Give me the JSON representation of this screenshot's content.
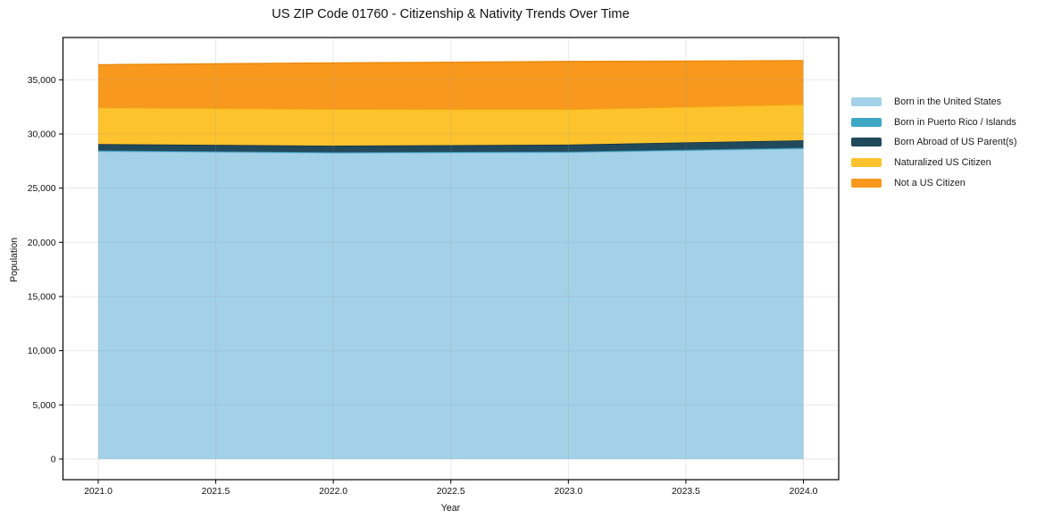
{
  "chart_data": {
    "type": "area",
    "stacked": true,
    "title": "US ZIP Code 01760 - Citizenship & Nativity Trends Over Time",
    "xlabel": "Year",
    "ylabel": "Population",
    "x": [
      2021,
      2022,
      2023,
      2024
    ],
    "series": [
      {
        "name": "Born in the United States",
        "color": "#a3d1e8",
        "edge": "#82bcdb",
        "values": [
          28400,
          28250,
          28300,
          28650
        ]
      },
      {
        "name": "Born in Puerto Rico / Islands",
        "color": "#3fa7c6",
        "edge": "#2f8fae",
        "values": [
          70,
          70,
          70,
          70
        ]
      },
      {
        "name": "Born Abroad of US Parent(s)",
        "color": "#21495c",
        "edge": "#16323f",
        "values": [
          600,
          600,
          650,
          700
        ]
      },
      {
        "name": "Naturalized US Citizen",
        "color": "#fdc32d",
        "edge": "#f0b014",
        "values": [
          3360,
          3370,
          3250,
          3290
        ]
      },
      {
        "name": "Not a US Citizen",
        "color": "#f8991d",
        "edge": "#ee8a0e",
        "values": [
          3960,
          4260,
          4410,
          4050
        ]
      }
    ],
    "totals": [
      36390,
      36550,
      36680,
      36760
    ],
    "xticks": [
      2021.0,
      2021.5,
      2022.0,
      2022.5,
      2023.0,
      2023.5,
      2024.0
    ],
    "yticks": [
      0,
      5000,
      10000,
      15000,
      20000,
      25000,
      30000,
      35000
    ],
    "xlim": [
      2020.85,
      2024.15
    ],
    "ylim": [
      -1900,
      38900
    ],
    "grid": true,
    "legend_position": "right-outside",
    "frame_color": "#000000",
    "grid_color": "#999999",
    "text_color": "#111111"
  }
}
